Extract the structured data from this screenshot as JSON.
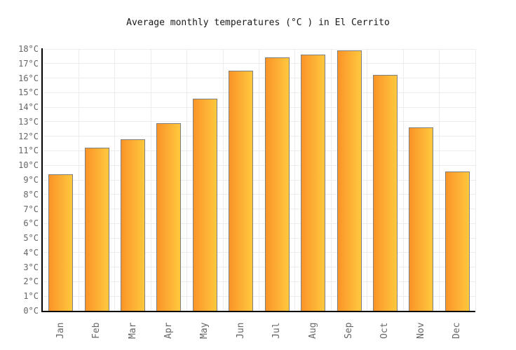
{
  "chart_data": {
    "type": "bar",
    "title": "Average monthly temperatures (°C ) in El Cerrito",
    "categories": [
      "Jan",
      "Feb",
      "Mar",
      "Apr",
      "May",
      "Jun",
      "Jul",
      "Aug",
      "Sep",
      "Oct",
      "Nov",
      "Dec"
    ],
    "values": [
      9.4,
      11.2,
      11.8,
      12.9,
      14.6,
      16.5,
      17.4,
      17.6,
      17.9,
      16.2,
      12.6,
      9.6
    ],
    "unit_suffix": "°C",
    "ylim": [
      0,
      18
    ],
    "ytick_step": 1,
    "ytick_labels": [
      "0°C",
      "1°C",
      "2°C",
      "3°C",
      "4°C",
      "5°C",
      "6°C",
      "7°C",
      "8°C",
      "9°C",
      "10°C",
      "11°C",
      "12°C",
      "13°C",
      "14°C",
      "15°C",
      "16°C",
      "17°C",
      "18°C"
    ],
    "grid": true,
    "legend_position": "none",
    "colors": {
      "bar_gradient_left": "#fa9428",
      "bar_gradient_right": "#ffc83e",
      "bar_border": "#7f7f7f",
      "axis": "#000000",
      "gridline": "#ededed",
      "tick_label": "#666666",
      "title_text": "#1a1a1a",
      "background": "#ffffff"
    }
  }
}
